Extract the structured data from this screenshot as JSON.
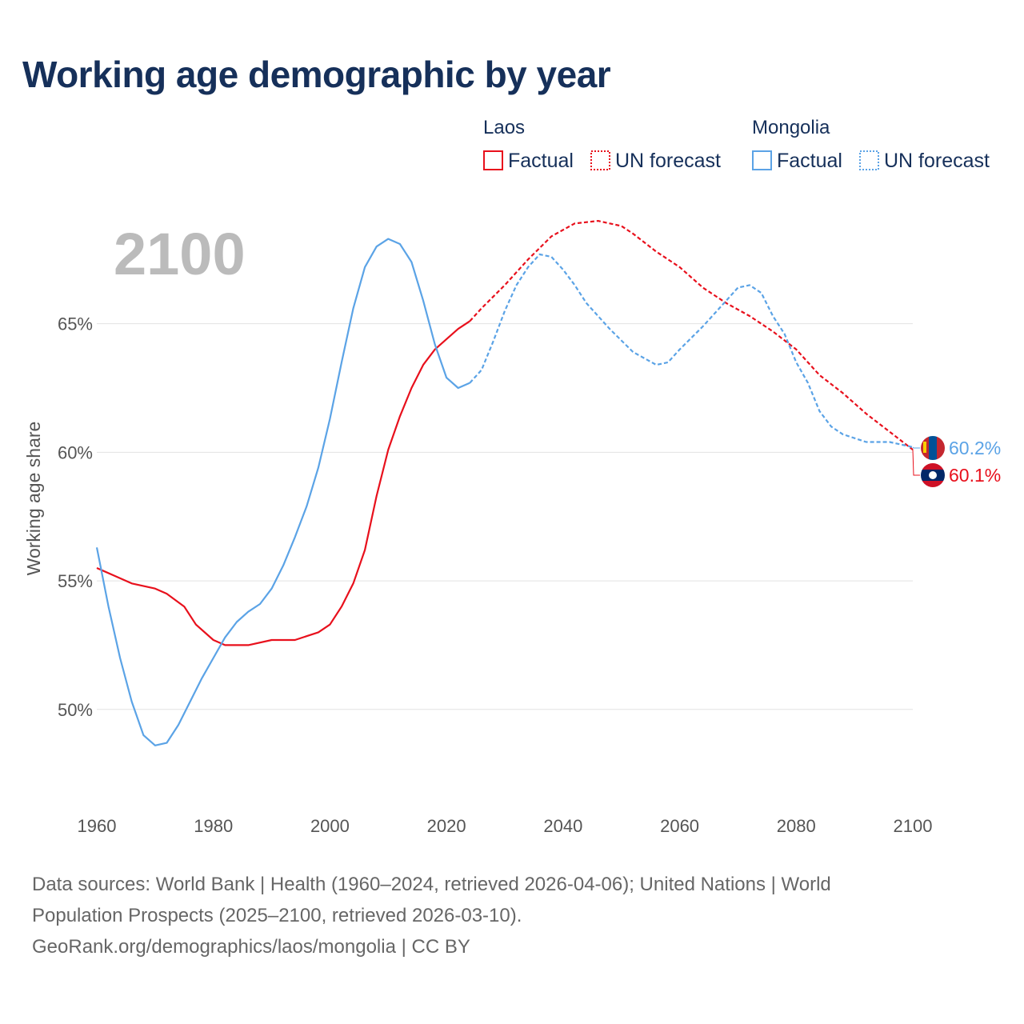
{
  "title": "Working age demographic by year",
  "current_year_label": "2100",
  "legend": {
    "groups": [
      {
        "country": "Laos",
        "factual_label": "Factual",
        "forecast_label": "UN forecast",
        "color": "#e8101c"
      },
      {
        "country": "Mongolia",
        "factual_label": "Factual",
        "forecast_label": "UN forecast",
        "color": "#5ba3e6"
      }
    ]
  },
  "footer": {
    "line1": "Data sources: World Bank | Health (1960–2024, retrieved 2026-04-06); United Nations | World",
    "line2": "Population Prospects (2025–2100, retrieved 2026-03-10).",
    "line3": "GeoRank.org/demographics/laos/mongolia | CC BY"
  },
  "chart_data": {
    "type": "line",
    "title": "Working age demographic by year",
    "xlabel": "",
    "ylabel": "Working age share",
    "xlim": [
      1960,
      2100
    ],
    "ylim": [
      47.1,
      69.5
    ],
    "x_ticks": [
      1960,
      1980,
      2000,
      2020,
      2040,
      2060,
      2080,
      2100
    ],
    "y_ticks": [
      50,
      55,
      60,
      65
    ],
    "y_tick_labels": [
      "50%",
      "55%",
      "60%",
      "65%"
    ],
    "grid": true,
    "forecast_start": 2024,
    "series": [
      {
        "name": "Laos",
        "color": "#e8101c",
        "end_label": "60.1%",
        "flag_icon": "laos-flag-icon",
        "points": [
          [
            1960,
            55.5
          ],
          [
            1963,
            55.2
          ],
          [
            1966,
            54.9
          ],
          [
            1970,
            54.7
          ],
          [
            1972,
            54.5
          ],
          [
            1975,
            54.0
          ],
          [
            1977,
            53.3
          ],
          [
            1980,
            52.7
          ],
          [
            1982,
            52.5
          ],
          [
            1986,
            52.5
          ],
          [
            1990,
            52.7
          ],
          [
            1994,
            52.7
          ],
          [
            1998,
            53.0
          ],
          [
            2000,
            53.3
          ],
          [
            2002,
            54.0
          ],
          [
            2004,
            54.9
          ],
          [
            2006,
            56.2
          ],
          [
            2008,
            58.3
          ],
          [
            2010,
            60.1
          ],
          [
            2012,
            61.4
          ],
          [
            2014,
            62.5
          ],
          [
            2016,
            63.4
          ],
          [
            2018,
            64.0
          ],
          [
            2020,
            64.4
          ],
          [
            2022,
            64.8
          ],
          [
            2024,
            65.1
          ],
          [
            2026,
            65.6
          ],
          [
            2030,
            66.5
          ],
          [
            2034,
            67.5
          ],
          [
            2038,
            68.4
          ],
          [
            2042,
            68.9
          ],
          [
            2046,
            69.0
          ],
          [
            2048,
            68.9
          ],
          [
            2050,
            68.8
          ],
          [
            2052,
            68.5
          ],
          [
            2056,
            67.8
          ],
          [
            2060,
            67.2
          ],
          [
            2064,
            66.4
          ],
          [
            2068,
            65.8
          ],
          [
            2072,
            65.3
          ],
          [
            2076,
            64.7
          ],
          [
            2080,
            64.0
          ],
          [
            2084,
            63.0
          ],
          [
            2088,
            62.3
          ],
          [
            2092,
            61.5
          ],
          [
            2096,
            60.8
          ],
          [
            2100,
            60.1
          ]
        ]
      },
      {
        "name": "Mongolia",
        "color": "#5ba3e6",
        "end_label": "60.2%",
        "flag_icon": "mongolia-flag-icon",
        "points": [
          [
            1960,
            56.3
          ],
          [
            1962,
            54.0
          ],
          [
            1964,
            52.0
          ],
          [
            1966,
            50.3
          ],
          [
            1968,
            49.0
          ],
          [
            1970,
            48.6
          ],
          [
            1972,
            48.7
          ],
          [
            1974,
            49.4
          ],
          [
            1976,
            50.3
          ],
          [
            1978,
            51.2
          ],
          [
            1980,
            52.0
          ],
          [
            1982,
            52.8
          ],
          [
            1984,
            53.4
          ],
          [
            1986,
            53.8
          ],
          [
            1988,
            54.1
          ],
          [
            1990,
            54.7
          ],
          [
            1992,
            55.6
          ],
          [
            1994,
            56.7
          ],
          [
            1996,
            57.9
          ],
          [
            1998,
            59.4
          ],
          [
            2000,
            61.3
          ],
          [
            2002,
            63.5
          ],
          [
            2004,
            65.6
          ],
          [
            2006,
            67.2
          ],
          [
            2008,
            68.0
          ],
          [
            2010,
            68.3
          ],
          [
            2012,
            68.1
          ],
          [
            2014,
            67.4
          ],
          [
            2016,
            65.9
          ],
          [
            2018,
            64.2
          ],
          [
            2020,
            62.9
          ],
          [
            2022,
            62.5
          ],
          [
            2024,
            62.7
          ],
          [
            2026,
            63.2
          ],
          [
            2028,
            64.3
          ],
          [
            2030,
            65.5
          ],
          [
            2032,
            66.5
          ],
          [
            2034,
            67.2
          ],
          [
            2036,
            67.7
          ],
          [
            2038,
            67.6
          ],
          [
            2040,
            67.1
          ],
          [
            2042,
            66.5
          ],
          [
            2044,
            65.8
          ],
          [
            2048,
            64.8
          ],
          [
            2052,
            63.9
          ],
          [
            2056,
            63.4
          ],
          [
            2058,
            63.5
          ],
          [
            2060,
            64.0
          ],
          [
            2064,
            64.9
          ],
          [
            2068,
            65.9
          ],
          [
            2070,
            66.4
          ],
          [
            2072,
            66.5
          ],
          [
            2074,
            66.2
          ],
          [
            2076,
            65.3
          ],
          [
            2078,
            64.6
          ],
          [
            2080,
            63.5
          ],
          [
            2082,
            62.7
          ],
          [
            2084,
            61.6
          ],
          [
            2086,
            61.0
          ],
          [
            2088,
            60.7
          ],
          [
            2092,
            60.4
          ],
          [
            2096,
            60.4
          ],
          [
            2100,
            60.2
          ]
        ]
      }
    ]
  }
}
